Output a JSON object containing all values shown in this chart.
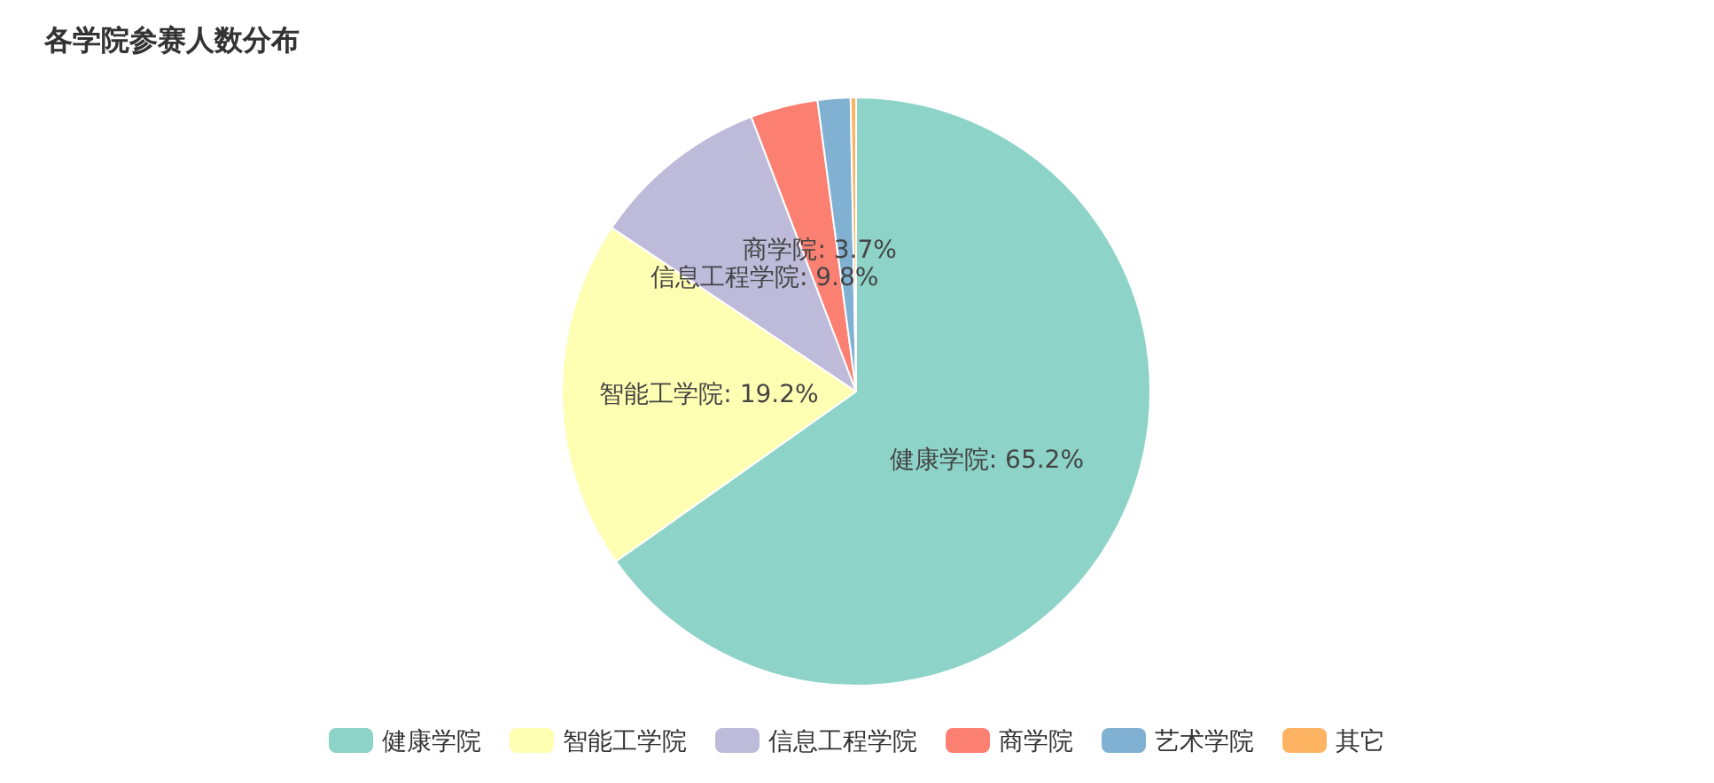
{
  "chart_data": {
    "type": "pie",
    "title": "各学院参赛人数分布",
    "categories": [
      "健康学院",
      "智能工学院",
      "信息工程学院",
      "商学院",
      "艺术学院",
      "其它"
    ],
    "values": [
      65.2,
      19.2,
      9.8,
      3.7,
      1.8,
      0.3
    ],
    "value_labels": [
      "健康学院: 65.2%",
      "智能工学院: 19.2%",
      "信息工程学院: 9.8%",
      "商学院: 3.7%",
      null,
      null
    ],
    "colors": [
      "#8dd3c7",
      "#ffffb3",
      "#bebada",
      "#fb8072",
      "#80b1d3",
      "#fdb462"
    ],
    "legend": "bottom"
  }
}
